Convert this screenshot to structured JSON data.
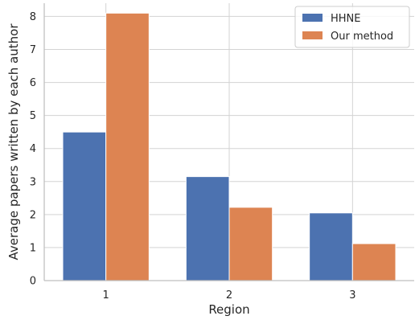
{
  "chart_data": {
    "type": "bar",
    "title": "",
    "xlabel": "Region",
    "ylabel": "Average papers written by each author",
    "categories": [
      "1",
      "2",
      "3"
    ],
    "series": [
      {
        "name": "HHNE",
        "values": [
          4.5,
          3.15,
          2.05
        ],
        "color": "#4c72b0"
      },
      {
        "name": "Our method",
        "values": [
          8.1,
          2.22,
          1.12
        ],
        "color": "#dd8452"
      }
    ],
    "ylim": [
      0,
      8.4
    ],
    "yticks": [
      "0",
      "1",
      "2",
      "3",
      "4",
      "5",
      "6",
      "7",
      "8"
    ],
    "grid": true,
    "legend_position": "top-right"
  }
}
